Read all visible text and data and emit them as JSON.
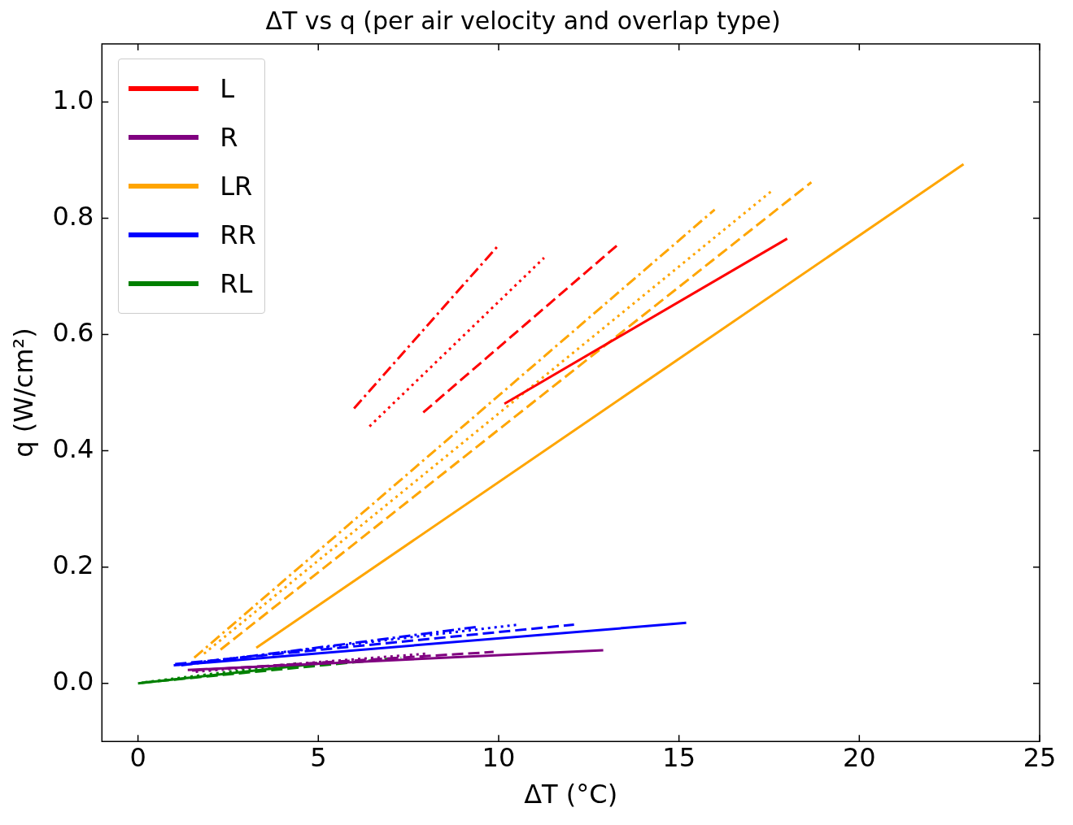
{
  "chart_data": {
    "type": "line",
    "title": "ΔT vs q (per air velocity and overlap type)",
    "xlabel": "ΔT (°C)",
    "ylabel": "q (W/cm²)",
    "xlim": [
      -1,
      25
    ],
    "xticks": [
      0,
      5,
      10,
      15,
      20,
      25
    ],
    "ylim": [
      -0.1,
      1.1
    ],
    "yticks": [
      {
        "value": 0,
        "label": "0.0"
      },
      0.2,
      0.4,
      0.6,
      0.8,
      {
        "value": 1,
        "label": "1.0"
      }
    ],
    "grid": false,
    "legend": "top left",
    "marker": "none",
    "series": [
      {
        "name": "L",
        "color": "#ff0000",
        "line_style": "solid",
        "x": [
          10.16,
          18.0
        ],
        "values": [
          0.481,
          0.765
        ]
      },
      {
        "color": "#ff0000",
        "line_style": "dashed",
        "x": [
          7.91,
          13.37
        ],
        "values": [
          0.466,
          0.758
        ]
      },
      {
        "color": "#ff0000",
        "line_style": "dotted",
        "x": [
          6.42,
          11.26
        ],
        "values": [
          0.442,
          0.732
        ]
      },
      {
        "color": "#ff0000",
        "line_style": "dashdot",
        "x": [
          5.99,
          10.0
        ],
        "values": [
          0.473,
          0.754
        ]
      },
      {
        "name": "R",
        "color": "#800080",
        "line_style": "solid",
        "x": [
          1.38,
          12.9
        ],
        "values": [
          0.023,
          0.057
        ]
      },
      {
        "color": "#800080",
        "line_style": "dashed",
        "x": [
          1.5,
          9.86
        ],
        "values": [
          0.022,
          0.054
        ]
      },
      {
        "color": "#800080",
        "line_style": "dotted",
        "x": [
          1.6,
          8.0
        ],
        "values": [
          0.02,
          0.051
        ]
      },
      {
        "name": "LR",
        "color": "#ffa500",
        "line_style": "solid",
        "x": [
          3.28,
          22.89
        ],
        "values": [
          0.061,
          0.893
        ]
      },
      {
        "color": "#ffa500",
        "line_style": "dashed",
        "x": [
          2.29,
          18.67
        ],
        "values": [
          0.058,
          0.862
        ]
      },
      {
        "color": "#ffa500",
        "line_style": "dotted",
        "x": [
          1.83,
          17.59
        ],
        "values": [
          0.051,
          0.848
        ]
      },
      {
        "color": "#ffa500",
        "line_style": "dashdot",
        "x": [
          1.56,
          15.99
        ],
        "values": [
          0.044,
          0.815
        ]
      },
      {
        "name": "RR",
        "color": "#0000ff",
        "line_style": "solid",
        "x": [
          0.99,
          15.2
        ],
        "values": [
          0.031,
          0.104
        ]
      },
      {
        "color": "#0000ff",
        "line_style": "dashed",
        "x": [
          1.03,
          12.09
        ],
        "values": [
          0.033,
          0.101
        ]
      },
      {
        "color": "#0000ff",
        "line_style": "dotted",
        "x": [
          1.1,
          10.55
        ],
        "values": [
          0.032,
          0.101
        ]
      },
      {
        "color": "#0000ff",
        "line_style": "dashdot",
        "x": [
          1.2,
          9.4
        ],
        "values": [
          0.031,
          0.097
        ]
      },
      {
        "name": "RL",
        "color": "#008000",
        "line_style": "solid",
        "x": [
          0,
          5.3
        ],
        "values": [
          0.0,
          0.036
        ]
      },
      {
        "color": "#008000",
        "line_style": "dashed",
        "x": [
          0.1,
          7.3
        ],
        "values": [
          0.001,
          0.044
        ]
      },
      {
        "color": "#008000",
        "line_style": "dotted",
        "x": [
          0.2,
          4.5
        ],
        "values": [
          0.002,
          0.035
        ]
      }
    ]
  }
}
